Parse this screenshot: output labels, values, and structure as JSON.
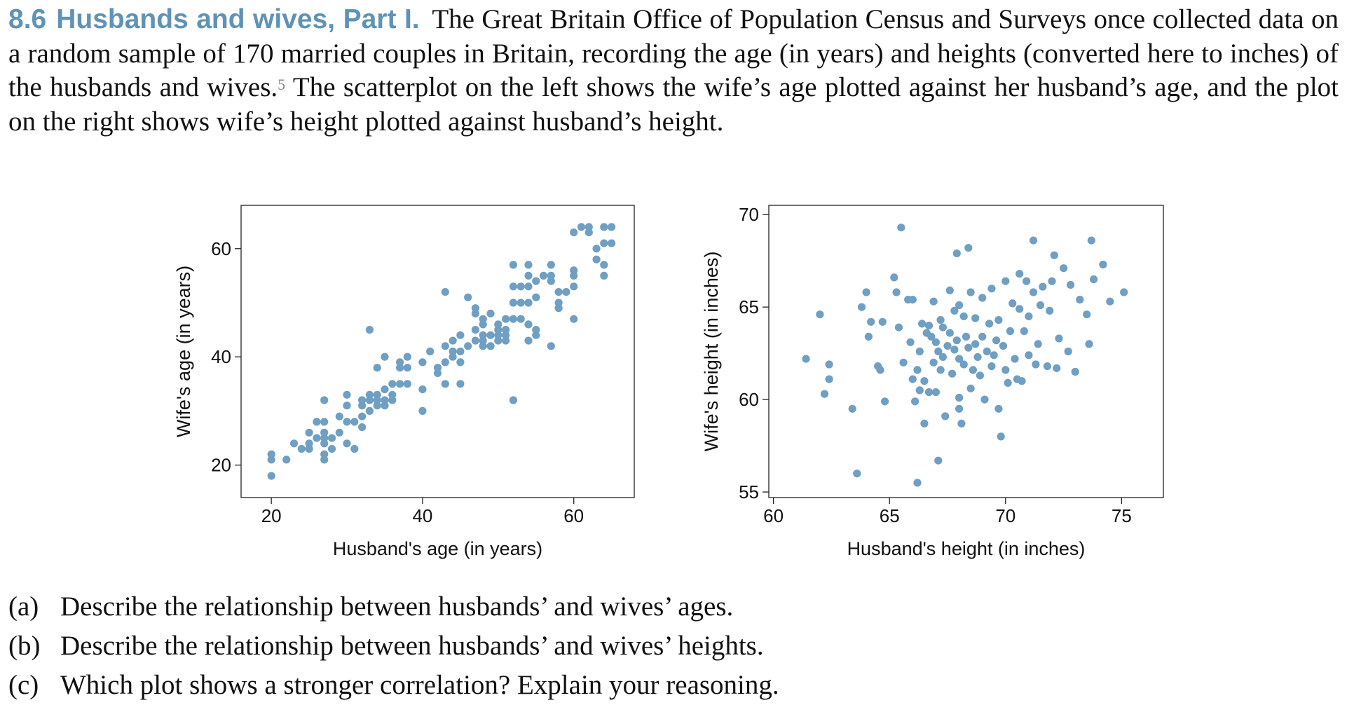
{
  "exercise": {
    "number": "8.6",
    "title": "Husbands and wives, Part I.",
    "text_before_footnote": "The Great Britain Office of Population Census and Surveys once collected data on a random sample of 170 married couples in Britain, recording the age (in years) and heights (converted here to inches) of the husbands and wives.",
    "footnote_mark": "5",
    "text_after_footnote": "The scatterplot on the left shows the wife’s age plotted against her husband’s age, and the plot on the right shows wife’s height plotted against husband’s height."
  },
  "questions": [
    {
      "label": "(a)",
      "text": "Describe the relationship between husbands’ and wives’ ages."
    },
    {
      "label": "(b)",
      "text": "Describe the relationship between husbands’ and wives’ heights."
    },
    {
      "label": "(c)",
      "text": "Which plot shows a stronger correlation? Explain your reasoning."
    }
  ],
  "colors": {
    "point": "#6f9fc2",
    "accent": "#5f93b6",
    "axis": "#222222"
  },
  "chart_data": [
    {
      "type": "scatter",
      "title": "",
      "xlabel": "Husband's age (in years)",
      "ylabel": "Wife's age (in years)",
      "xlim": [
        16,
        68
      ],
      "ylim": [
        14,
        68
      ],
      "xticks": [
        20,
        40,
        60
      ],
      "yticks": [
        20,
        40,
        60
      ],
      "grid": false,
      "series": [
        {
          "points": [
            [
              20,
              18
            ],
            [
              20,
              21
            ],
            [
              20,
              22
            ],
            [
              22,
              21
            ],
            [
              23,
              24
            ],
            [
              24,
              23
            ],
            [
              25,
              23
            ],
            [
              25,
              24
            ],
            [
              25,
              26
            ],
            [
              26,
              25
            ],
            [
              26,
              28
            ],
            [
              27,
              21
            ],
            [
              27,
              22
            ],
            [
              27,
              24
            ],
            [
              27,
              25
            ],
            [
              27,
              26
            ],
            [
              27,
              28
            ],
            [
              27,
              32
            ],
            [
              28,
              23
            ],
            [
              28,
              25
            ],
            [
              29,
              26
            ],
            [
              29,
              29
            ],
            [
              30,
              24
            ],
            [
              30,
              28
            ],
            [
              30,
              31
            ],
            [
              30,
              33
            ],
            [
              31,
              23
            ],
            [
              31,
              28
            ],
            [
              32,
              27
            ],
            [
              32,
              29
            ],
            [
              32,
              31
            ],
            [
              32,
              32
            ],
            [
              33,
              30
            ],
            [
              33,
              32
            ],
            [
              33,
              33
            ],
            [
              33,
              45
            ],
            [
              34,
              31
            ],
            [
              34,
              32
            ],
            [
              34,
              33
            ],
            [
              34,
              38
            ],
            [
              35,
              31
            ],
            [
              35,
              32
            ],
            [
              35,
              34
            ],
            [
              35,
              40
            ],
            [
              36,
              32
            ],
            [
              36,
              33
            ],
            [
              36,
              35
            ],
            [
              37,
              35
            ],
            [
              37,
              38
            ],
            [
              37,
              39
            ],
            [
              38,
              35
            ],
            [
              38,
              38
            ],
            [
              38,
              40
            ],
            [
              40,
              30
            ],
            [
              40,
              34
            ],
            [
              40,
              39
            ],
            [
              41,
              41
            ],
            [
              42,
              37
            ],
            [
              42,
              38
            ],
            [
              43,
              35
            ],
            [
              43,
              39
            ],
            [
              43,
              42
            ],
            [
              43,
              52
            ],
            [
              44,
              40
            ],
            [
              44,
              41
            ],
            [
              44,
              43
            ],
            [
              45,
              35
            ],
            [
              45,
              39
            ],
            [
              45,
              41
            ],
            [
              45,
              44
            ],
            [
              46,
              42
            ],
            [
              46,
              51
            ],
            [
              47,
              43
            ],
            [
              47,
              45
            ],
            [
              47,
              48
            ],
            [
              47,
              49
            ],
            [
              48,
              42
            ],
            [
              48,
              43
            ],
            [
              48,
              44
            ],
            [
              48,
              46
            ],
            [
              48,
              47
            ],
            [
              49,
              42
            ],
            [
              49,
              44
            ],
            [
              49,
              48
            ],
            [
              50,
              43
            ],
            [
              50,
              44
            ],
            [
              50,
              45
            ],
            [
              50,
              46
            ],
            [
              51,
              43
            ],
            [
              51,
              44
            ],
            [
              51,
              45
            ],
            [
              51,
              47
            ],
            [
              52,
              32
            ],
            [
              52,
              47
            ],
            [
              52,
              50
            ],
            [
              52,
              53
            ],
            [
              52,
              57
            ],
            [
              53,
              47
            ],
            [
              53,
              50
            ],
            [
              53,
              53
            ],
            [
              54,
              43
            ],
            [
              54,
              46
            ],
            [
              54,
              50
            ],
            [
              54,
              53
            ],
            [
              54,
              55
            ],
            [
              54,
              57
            ],
            [
              55,
              44
            ],
            [
              55,
              45
            ],
            [
              55,
              51
            ],
            [
              55,
              54
            ],
            [
              56,
              55
            ],
            [
              57,
              42
            ],
            [
              57,
              54
            ],
            [
              57,
              55
            ],
            [
              57,
              57
            ],
            [
              58,
              49
            ],
            [
              58,
              50
            ],
            [
              58,
              52
            ],
            [
              59,
              52
            ],
            [
              60,
              47
            ],
            [
              60,
              53
            ],
            [
              60,
              55
            ],
            [
              60,
              56
            ],
            [
              60,
              63
            ],
            [
              61,
              64
            ],
            [
              62,
              63
            ],
            [
              62,
              64
            ],
            [
              63,
              58
            ],
            [
              63,
              60
            ],
            [
              64,
              55
            ],
            [
              64,
              57
            ],
            [
              64,
              61
            ],
            [
              64,
              64
            ],
            [
              65,
              61
            ],
            [
              65,
              64
            ]
          ]
        }
      ]
    },
    {
      "type": "scatter",
      "title": "",
      "xlabel": "Husband's height (in inches)",
      "ylabel": "Wife's height (in inches)",
      "xlim": [
        59.8,
        76.8
      ],
      "ylim": [
        54.7,
        70.5
      ],
      "xticks": [
        60,
        65,
        70,
        75
      ],
      "yticks": [
        55,
        60,
        65,
        70
      ],
      "grid": false,
      "series": [
        {
          "points": [
            [
              61.4,
              62.2
            ],
            [
              62.0,
              64.6
            ],
            [
              62.2,
              60.3
            ],
            [
              62.4,
              61.1
            ],
            [
              62.4,
              61.9
            ],
            [
              63.4,
              59.5
            ],
            [
              63.6,
              56.0
            ],
            [
              63.8,
              65.0
            ],
            [
              64.0,
              65.8
            ],
            [
              64.1,
              63.4
            ],
            [
              64.2,
              64.2
            ],
            [
              64.5,
              61.8
            ],
            [
              64.6,
              61.6
            ],
            [
              64.7,
              64.2
            ],
            [
              64.8,
              59.9
            ],
            [
              65.2,
              66.6
            ],
            [
              65.3,
              65.8
            ],
            [
              65.4,
              63.9
            ],
            [
              65.5,
              69.3
            ],
            [
              65.6,
              62.0
            ],
            [
              65.8,
              65.4
            ],
            [
              65.9,
              63.1
            ],
            [
              66.0,
              61.1
            ],
            [
              66.0,
              65.4
            ],
            [
              66.1,
              59.9
            ],
            [
              66.2,
              55.5
            ],
            [
              66.2,
              61.6
            ],
            [
              66.3,
              60.5
            ],
            [
              66.3,
              62.6
            ],
            [
              66.4,
              64.1
            ],
            [
              66.5,
              58.7
            ],
            [
              66.5,
              61.0
            ],
            [
              66.6,
              63.6
            ],
            [
              66.7,
              60.4
            ],
            [
              66.7,
              64.0
            ],
            [
              66.8,
              63.4
            ],
            [
              66.9,
              62.0
            ],
            [
              66.9,
              65.3
            ],
            [
              67.0,
              60.4
            ],
            [
              67.0,
              63.1
            ],
            [
              67.1,
              56.7
            ],
            [
              67.1,
              62.6
            ],
            [
              67.2,
              61.6
            ],
            [
              67.2,
              64.3
            ],
            [
              67.3,
              62.3
            ],
            [
              67.3,
              63.9
            ],
            [
              67.4,
              59.1
            ],
            [
              67.5,
              62.9
            ],
            [
              67.6,
              63.6
            ],
            [
              67.6,
              65.9
            ],
            [
              67.7,
              61.4
            ],
            [
              67.8,
              62.7
            ],
            [
              67.8,
              64.8
            ],
            [
              67.9,
              63.2
            ],
            [
              67.9,
              67.9
            ],
            [
              68.0,
              59.5
            ],
            [
              68.0,
              60.1
            ],
            [
              68.0,
              62.2
            ],
            [
              68.0,
              65.1
            ],
            [
              68.1,
              58.7
            ],
            [
              68.2,
              61.9
            ],
            [
              68.2,
              64.5
            ],
            [
              68.3,
              63.4
            ],
            [
              68.4,
              62.8
            ],
            [
              68.4,
              68.2
            ],
            [
              68.5,
              60.6
            ],
            [
              68.5,
              65.8
            ],
            [
              68.6,
              61.6
            ],
            [
              68.7,
              63.0
            ],
            [
              68.7,
              64.4
            ],
            [
              68.8,
              62.3
            ],
            [
              68.9,
              61.3
            ],
            [
              69.0,
              63.4
            ],
            [
              69.0,
              65.5
            ],
            [
              69.1,
              60.0
            ],
            [
              69.2,
              62.6
            ],
            [
              69.3,
              64.1
            ],
            [
              69.4,
              61.8
            ],
            [
              69.4,
              66.0
            ],
            [
              69.5,
              62.4
            ],
            [
              69.6,
              63.2
            ],
            [
              69.7,
              59.5
            ],
            [
              69.7,
              64.3
            ],
            [
              69.8,
              58.0
            ],
            [
              69.9,
              62.9
            ],
            [
              70.0,
              61.6
            ],
            [
              70.0,
              66.4
            ],
            [
              70.1,
              60.9
            ],
            [
              70.2,
              63.7
            ],
            [
              70.3,
              65.2
            ],
            [
              70.4,
              62.2
            ],
            [
              70.5,
              61.1
            ],
            [
              70.6,
              64.9
            ],
            [
              70.6,
              66.8
            ],
            [
              70.7,
              61.0
            ],
            [
              70.8,
              63.7
            ],
            [
              70.9,
              66.4
            ],
            [
              71.0,
              62.4
            ],
            [
              71.0,
              64.5
            ],
            [
              71.2,
              65.8
            ],
            [
              71.2,
              68.6
            ],
            [
              71.3,
              61.9
            ],
            [
              71.4,
              63.0
            ],
            [
              71.5,
              65.1
            ],
            [
              71.6,
              66.1
            ],
            [
              71.8,
              61.8
            ],
            [
              71.9,
              64.8
            ],
            [
              72.0,
              66.4
            ],
            [
              72.1,
              67.8
            ],
            [
              72.2,
              61.7
            ],
            [
              72.3,
              63.3
            ],
            [
              72.5,
              67.1
            ],
            [
              72.7,
              62.6
            ],
            [
              72.8,
              66.2
            ],
            [
              73.0,
              61.5
            ],
            [
              73.2,
              65.4
            ],
            [
              73.5,
              64.6
            ],
            [
              73.6,
              63.0
            ],
            [
              73.7,
              68.6
            ],
            [
              73.8,
              66.5
            ],
            [
              74.2,
              67.3
            ],
            [
              74.5,
              65.3
            ],
            [
              75.1,
              65.8
            ]
          ]
        }
      ]
    }
  ]
}
